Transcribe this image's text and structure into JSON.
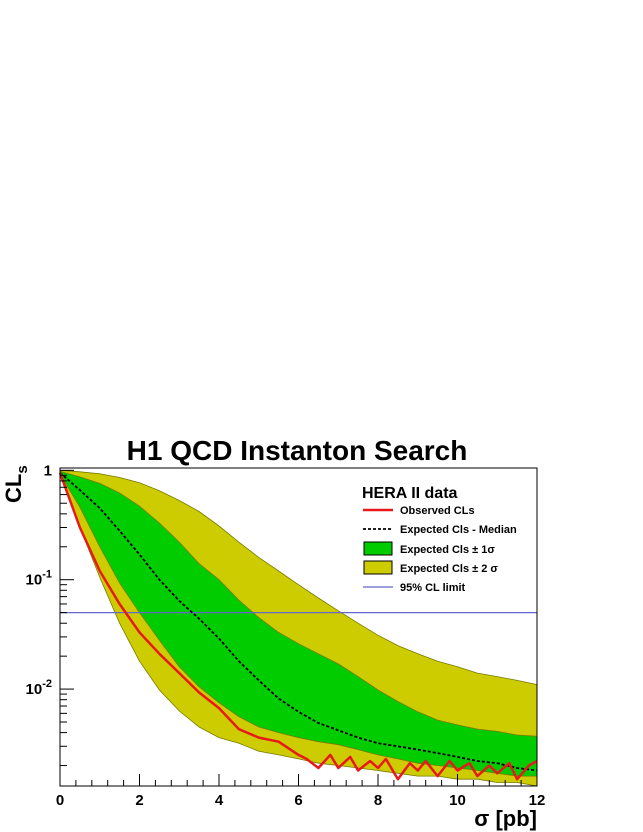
{
  "chart_data": {
    "type": "line",
    "title": "H1 QCD Instanton Search",
    "xlabel": "σ [pb]",
    "ylabel": "CL",
    "ylabel_sub": "s",
    "xlim": [
      0,
      12
    ],
    "ylim": [
      0.0013,
      1.05
    ],
    "yscale": "log",
    "x_ticks": [
      "0",
      "2",
      "4",
      "6",
      "8",
      "10",
      "12"
    ],
    "y_ticks": [
      {
        "base": "1",
        "exp": ""
      },
      {
        "base": "10",
        "exp": "-1"
      },
      {
        "base": "10",
        "exp": "-2"
      }
    ],
    "legend": {
      "header": "HERA II data",
      "position": "top-right",
      "entries": [
        {
          "label": "Observed CLs"
        },
        {
          "label": "Expected Cls - Median"
        },
        {
          "label": "Expected Cls ± 1σ"
        },
        {
          "label": "Expected Cls ± 2 σ"
        },
        {
          "label": "95% CL limit"
        }
      ]
    },
    "colors": {
      "observed": "#e8191c",
      "expected_median": "#000000",
      "band_1sigma": "#00cc00",
      "band_2sigma": "#cccc00",
      "cl_limit": "#6666cc",
      "band_edge": "#7a7a00"
    },
    "cl_limit_value": 0.05,
    "series": [
      {
        "name": "Observed CLs",
        "x": [
          0,
          0.5,
          1,
          1.5,
          2,
          2.5,
          3,
          3.5,
          4,
          4.5,
          5,
          5.5,
          6,
          6.2,
          6.5,
          6.8,
          7,
          7.3,
          7.5,
          7.8,
          8,
          8.2,
          8.5,
          8.8,
          9,
          9.2,
          9.5,
          9.8,
          10,
          10.3,
          10.5,
          10.8,
          11,
          11.3,
          11.5,
          11.8,
          12
        ],
        "y": [
          0.95,
          0.3,
          0.12,
          0.06,
          0.033,
          0.021,
          0.014,
          0.0093,
          0.0067,
          0.0043,
          0.0036,
          0.0033,
          0.0025,
          0.0023,
          0.0019,
          0.0025,
          0.0019,
          0.0024,
          0.0018,
          0.0022,
          0.0019,
          0.0023,
          0.0015,
          0.0021,
          0.0018,
          0.0022,
          0.0016,
          0.0022,
          0.0018,
          0.0021,
          0.0016,
          0.002,
          0.0017,
          0.0021,
          0.0015,
          0.002,
          0.0022
        ]
      },
      {
        "name": "Expected Cls - Median",
        "x": [
          0,
          0.5,
          1,
          1.5,
          2,
          2.5,
          3,
          3.5,
          4,
          4.5,
          5,
          5.5,
          6,
          6.5,
          7,
          7.5,
          8,
          8.5,
          9,
          9.5,
          10,
          10.5,
          11,
          11.5,
          12
        ],
        "y": [
          0.95,
          0.66,
          0.45,
          0.28,
          0.17,
          0.1,
          0.064,
          0.044,
          0.029,
          0.018,
          0.012,
          0.0082,
          0.0062,
          0.0049,
          0.0042,
          0.0036,
          0.0032,
          0.003,
          0.0028,
          0.0026,
          0.0024,
          0.0022,
          0.0021,
          0.0019,
          0.0018
        ]
      },
      {
        "name": "Expected Cls ± 1σ",
        "x": [
          0,
          0.5,
          1,
          1.5,
          2,
          2.5,
          3,
          3.5,
          4,
          4.5,
          5,
          5.5,
          6,
          6.5,
          7,
          7.5,
          8,
          8.5,
          9,
          9.5,
          10,
          10.5,
          11,
          11.5,
          12
        ],
        "upper": [
          0.98,
          0.87,
          0.76,
          0.62,
          0.47,
          0.33,
          0.22,
          0.14,
          0.1,
          0.065,
          0.045,
          0.033,
          0.026,
          0.021,
          0.017,
          0.013,
          0.0098,
          0.0077,
          0.0062,
          0.0052,
          0.0047,
          0.0043,
          0.0041,
          0.0038,
          0.0037
        ],
        "lower": [
          0.92,
          0.46,
          0.2,
          0.093,
          0.05,
          0.028,
          0.016,
          0.0105,
          0.0075,
          0.0056,
          0.0045,
          0.004,
          0.0036,
          0.0033,
          0.0031,
          0.0028,
          0.0025,
          0.0023,
          0.0021,
          0.002,
          0.0019,
          0.0018,
          0.0017,
          0.0016,
          0.0016
        ]
      },
      {
        "name": "Expected Cls ± 2 σ",
        "x": [
          0,
          0.5,
          1,
          1.5,
          2,
          2.5,
          3,
          3.5,
          4,
          4.5,
          5,
          5.5,
          6,
          6.5,
          7,
          7.5,
          8,
          8.5,
          9,
          9.5,
          10,
          10.5,
          11,
          11.5,
          12
        ],
        "upper": [
          1.0,
          0.97,
          0.93,
          0.86,
          0.77,
          0.65,
          0.53,
          0.42,
          0.31,
          0.22,
          0.16,
          0.12,
          0.09,
          0.068,
          0.052,
          0.04,
          0.031,
          0.025,
          0.021,
          0.018,
          0.016,
          0.014,
          0.013,
          0.012,
          0.011
        ],
        "lower": [
          0.9,
          0.3,
          0.105,
          0.04,
          0.018,
          0.0098,
          0.0063,
          0.0045,
          0.0036,
          0.0032,
          0.0027,
          0.0025,
          0.0023,
          0.0021,
          0.002,
          0.0019,
          0.0018,
          0.0017,
          0.0016,
          0.0016,
          0.0015,
          0.0015,
          0.0014,
          0.0014,
          0.0013
        ]
      }
    ]
  }
}
